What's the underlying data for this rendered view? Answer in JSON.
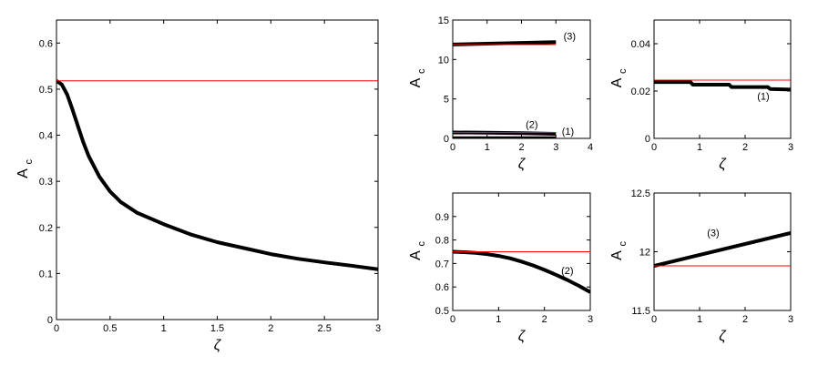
{
  "chart_data": [
    {
      "type": "line",
      "xlabel": "ζ",
      "ylabel": "A",
      "ylabel_subscript": "c",
      "xlim": [
        0,
        3
      ],
      "ylim": [
        0,
        0.65
      ],
      "xticks": [
        0,
        0.5,
        1,
        1.5,
        2,
        2.5,
        3
      ],
      "xtick_labels": [
        "0",
        "0.5",
        "1",
        "1.5",
        "2",
        "2.5",
        "3"
      ],
      "yticks": [
        0,
        0.1,
        0.2,
        0.3,
        0.4,
        0.5,
        0.6
      ],
      "ytick_labels": [
        "0",
        "0.1",
        "0.2",
        "0.3",
        "0.4",
        "0.5",
        "0.6"
      ],
      "grid": false,
      "series": [
        {
          "color": "#000000",
          "x": [
            0,
            0.05,
            0.1,
            0.15,
            0.2,
            0.25,
            0.3,
            0.4,
            0.5,
            0.6,
            0.75,
            1,
            1.25,
            1.5,
            1.75,
            2,
            2.25,
            2.5,
            2.75,
            3
          ],
          "y": [
            0.518,
            0.51,
            0.488,
            0.455,
            0.42,
            0.385,
            0.355,
            0.31,
            0.278,
            0.255,
            0.232,
            0.207,
            0.185,
            0.168,
            0.155,
            0.142,
            0.132,
            0.124,
            0.117,
            0.109
          ]
        },
        {
          "color": "#ff0000",
          "x": [
            0,
            3
          ],
          "y": [
            0.518,
            0.518
          ]
        }
      ],
      "annotations": []
    },
    {
      "type": "line",
      "xlabel": "ζ",
      "ylabel": "A",
      "ylabel_subscript": "c",
      "xlim": [
        0,
        4
      ],
      "ylim": [
        0,
        15
      ],
      "xticks": [
        0,
        1,
        2,
        3,
        4
      ],
      "xtick_labels": [
        "0",
        "1",
        "2",
        "3",
        "4"
      ],
      "yticks": [
        0,
        5,
        10,
        15
      ],
      "ytick_labels": [
        "0",
        "5",
        "10",
        "15"
      ],
      "grid": false,
      "series": [
        {
          "color": "#000000",
          "x": [
            0,
            1,
            2,
            3
          ],
          "y": [
            11.9,
            12.0,
            12.1,
            12.2
          ]
        },
        {
          "color": "#ff0000",
          "x": [
            0,
            3
          ],
          "y": [
            11.88,
            11.88
          ]
        },
        {
          "color": "#000000",
          "x": [
            0,
            1,
            2,
            3
          ],
          "y": [
            0.75,
            0.73,
            0.67,
            0.58
          ]
        },
        {
          "color": "#ff0000",
          "x": [
            0,
            3
          ],
          "y": [
            0.75,
            0.75
          ]
        },
        {
          "color": "#000000",
          "x": [
            0,
            3
          ],
          "y": [
            0.024,
            0.021
          ]
        }
      ],
      "annotations": [
        {
          "text": "(3)",
          "x": 3.4,
          "y": 12.5
        },
        {
          "text": "(2)",
          "x": 2.3,
          "y": 1.3
        },
        {
          "text": "(1)",
          "x": 3.35,
          "y": 0.45
        }
      ]
    },
    {
      "type": "line",
      "xlabel": "ζ",
      "ylabel": "A",
      "ylabel_subscript": "c",
      "xlim": [
        0,
        3
      ],
      "ylim": [
        0,
        0.05
      ],
      "xticks": [
        0,
        1,
        2,
        3
      ],
      "xtick_labels": [
        "0",
        "1",
        "2",
        "3"
      ],
      "yticks": [
        0,
        0.02,
        0.04
      ],
      "ytick_labels": [
        "0",
        "0.02",
        "0.04"
      ],
      "grid": false,
      "series": [
        {
          "color": "#000000",
          "x": [
            0,
            0.8,
            0.85,
            1.65,
            1.7,
            2.5,
            2.55,
            3
          ],
          "y": [
            0.0238,
            0.0238,
            0.0227,
            0.0227,
            0.0217,
            0.0217,
            0.0209,
            0.0206
          ]
        },
        {
          "color": "#ff0000",
          "x": [
            0,
            3
          ],
          "y": [
            0.0246,
            0.0246
          ]
        }
      ],
      "annotations": [
        {
          "text": "(1)",
          "x": 2.4,
          "y": 0.0164
        }
      ]
    },
    {
      "type": "line",
      "xlabel": "ζ",
      "ylabel": "A",
      "ylabel_subscript": "c",
      "xlim": [
        0,
        3
      ],
      "ylim": [
        0.5,
        1.0
      ],
      "xticks": [
        0,
        1,
        2,
        3
      ],
      "xtick_labels": [
        "0",
        "1",
        "2",
        "3"
      ],
      "yticks": [
        0.5,
        0.6,
        0.7,
        0.8,
        0.9
      ],
      "ytick_labels": [
        "0.5",
        "0.6",
        "0.7",
        "0.8",
        "0.9"
      ],
      "grid": false,
      "series": [
        {
          "color": "#000000",
          "x": [
            0,
            0.25,
            0.5,
            0.75,
            1,
            1.25,
            1.5,
            1.75,
            2,
            2.25,
            2.5,
            2.75,
            3
          ],
          "y": [
            0.75,
            0.748,
            0.745,
            0.74,
            0.732,
            0.722,
            0.708,
            0.692,
            0.673,
            0.652,
            0.63,
            0.605,
            0.578
          ]
        },
        {
          "color": "#ff0000",
          "x": [
            0,
            3
          ],
          "y": [
            0.75,
            0.75
          ]
        }
      ],
      "annotations": [
        {
          "text": "(2)",
          "x": 2.5,
          "y": 0.655
        }
      ]
    },
    {
      "type": "line",
      "xlabel": "ζ",
      "ylabel": "A",
      "ylabel_subscript": "c",
      "xlim": [
        0,
        3
      ],
      "ylim": [
        11.5,
        12.5
      ],
      "xticks": [
        0,
        1,
        2,
        3
      ],
      "xtick_labels": [
        "0",
        "1",
        "2",
        "3"
      ],
      "yticks": [
        11.5,
        12,
        12.5
      ],
      "ytick_labels": [
        "11.5",
        "12",
        "12.5"
      ],
      "grid": false,
      "series": [
        {
          "color": "#000000",
          "x": [
            0,
            3
          ],
          "y": [
            11.88,
            12.16
          ]
        },
        {
          "color": "#ff0000",
          "x": [
            0,
            3
          ],
          "y": [
            11.88,
            11.88
          ]
        }
      ],
      "annotations": [
        {
          "text": "(3)",
          "x": 1.3,
          "y": 12.13
        }
      ]
    }
  ]
}
